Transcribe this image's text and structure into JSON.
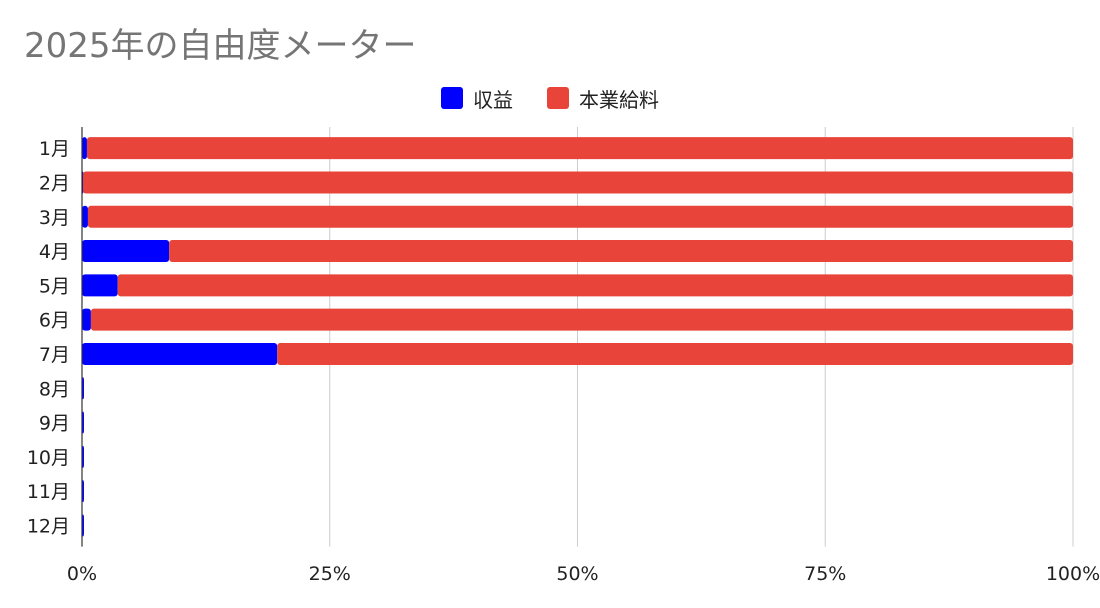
{
  "chart_data": {
    "type": "bar",
    "orientation": "horizontal",
    "stacking": "percent",
    "title": "2025年の自由度メーター",
    "categories": [
      "1月",
      "2月",
      "3月",
      "4月",
      "5月",
      "6月",
      "7月",
      "8月",
      "9月",
      "10月",
      "11月",
      "12月"
    ],
    "series": [
      {
        "name": "収益",
        "color": "#0000ff",
        "values": [
          0.5,
          0.1,
          0.6,
          8.8,
          3.6,
          0.9,
          19.7,
          0.2,
          0.2,
          0.2,
          0.2,
          0.2
        ]
      },
      {
        "name": "本業給料",
        "color": "#e8443a",
        "values": [
          99.5,
          99.9,
          99.4,
          91.2,
          96.4,
          99.1,
          80.3,
          0,
          0,
          0,
          0,
          0
        ]
      }
    ],
    "xlim": [
      0,
      100
    ],
    "xticks": [
      "0%",
      "25%",
      "50%",
      "75%",
      "100%"
    ],
    "grid": true,
    "legend_position": "top-center",
    "xlabel": "",
    "ylabel": ""
  }
}
